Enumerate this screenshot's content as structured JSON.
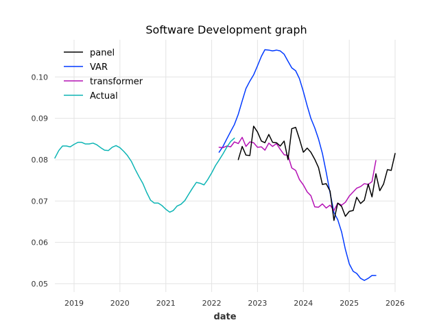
{
  "chart_data": {
    "type": "line",
    "title": "Software Development graph",
    "xlabel": "date",
    "ylabel": "",
    "x_axis": {
      "type": "date",
      "lim": [
        "2018-08-01",
        "2026-01-01"
      ],
      "ticks": [
        "2019",
        "2020",
        "2021",
        "2022",
        "2023",
        "2024",
        "2025",
        "2026"
      ]
    },
    "ylim": [
      0.048,
      0.109
    ],
    "y_ticks": [
      "0.05",
      "0.06",
      "0.07",
      "0.08",
      "0.09",
      "0.10"
    ],
    "y_tick_values": [
      0.05,
      0.06,
      0.07,
      0.08,
      0.09,
      0.1
    ],
    "grid": true,
    "legend": "top-left",
    "series": [
      {
        "name": "panel",
        "color": "#000000",
        "x": [
          "2022-08-01",
          "2022-09-01",
          "2022-10-01",
          "2022-11-01",
          "2022-12-01",
          "2023-01-01",
          "2023-02-01",
          "2023-03-01",
          "2023-04-01",
          "2023-05-01",
          "2023-06-01",
          "2023-07-01",
          "2023-08-01",
          "2023-09-01",
          "2023-10-01",
          "2023-11-01",
          "2023-12-01",
          "2024-01-01",
          "2024-02-01",
          "2024-03-01",
          "2024-04-01",
          "2024-05-01",
          "2024-06-01",
          "2024-07-01",
          "2024-08-01",
          "2024-09-01",
          "2024-10-01",
          "2024-11-01",
          "2024-12-01",
          "2025-01-01",
          "2025-02-01",
          "2025-03-01",
          "2025-04-01",
          "2025-05-01",
          "2025-06-01",
          "2025-07-01",
          "2025-08-01",
          "2025-09-01",
          "2025-10-01",
          "2025-11-01",
          "2025-12-01",
          "2026-01-01"
        ],
        "values": [
          0.08,
          0.0832,
          0.0811,
          0.081,
          0.0881,
          0.0867,
          0.0845,
          0.0841,
          0.0861,
          0.0842,
          0.0841,
          0.0833,
          0.0845,
          0.08,
          0.0875,
          0.0878,
          0.085,
          0.0818,
          0.0828,
          0.0818,
          0.0801,
          0.0781,
          0.074,
          0.0742,
          0.0724,
          0.0653,
          0.0695,
          0.0687,
          0.0663,
          0.0675,
          0.0677,
          0.0709,
          0.0694,
          0.0702,
          0.0741,
          0.071,
          0.0766,
          0.0725,
          0.0741,
          0.0776,
          0.0774,
          0.0815
        ]
      },
      {
        "name": "VAR",
        "color": "#0039ff",
        "x": [
          "2022-03-01",
          "2022-04-01",
          "2022-05-01",
          "2022-06-01",
          "2022-07-01",
          "2022-08-01",
          "2022-09-01",
          "2022-10-01",
          "2022-11-01",
          "2022-12-01",
          "2023-01-01",
          "2023-02-01",
          "2023-03-01",
          "2023-04-01",
          "2023-05-01",
          "2023-06-01",
          "2023-07-01",
          "2023-08-01",
          "2023-09-01",
          "2023-10-01",
          "2023-11-01",
          "2023-12-01",
          "2024-01-01",
          "2024-02-01",
          "2024-03-01",
          "2024-04-01",
          "2024-05-01",
          "2024-06-01",
          "2024-07-01",
          "2024-08-01",
          "2024-09-01",
          "2024-10-01",
          "2024-11-01",
          "2024-12-01",
          "2025-01-01",
          "2025-02-01",
          "2025-03-01",
          "2025-04-01",
          "2025-05-01",
          "2025-06-01",
          "2025-07-01",
          "2025-08-01"
        ],
        "values": [
          0.0818,
          0.0832,
          0.085,
          0.0868,
          0.0885,
          0.091,
          0.0942,
          0.0972,
          0.099,
          0.1005,
          0.1027,
          0.105,
          0.1066,
          0.1065,
          0.1063,
          0.1065,
          0.1063,
          0.1055,
          0.1038,
          0.1022,
          0.1015,
          0.0996,
          0.0965,
          0.093,
          0.09,
          0.0877,
          0.085,
          0.0815,
          0.077,
          0.072,
          0.0672,
          0.0655,
          0.0625,
          0.0583,
          0.0548,
          0.053,
          0.0525,
          0.0513,
          0.0508,
          0.0513,
          0.052,
          0.052
        ]
      },
      {
        "name": "transformer",
        "color": "#b410b4",
        "x": [
          "2022-03-01",
          "2022-04-01",
          "2022-05-01",
          "2022-06-01",
          "2022-07-01",
          "2022-08-01",
          "2022-09-01",
          "2022-10-01",
          "2022-11-01",
          "2022-12-01",
          "2023-01-01",
          "2023-02-01",
          "2023-03-01",
          "2023-04-01",
          "2023-05-01",
          "2023-06-01",
          "2023-07-01",
          "2023-08-01",
          "2023-09-01",
          "2023-10-01",
          "2023-11-01",
          "2023-12-01",
          "2024-01-01",
          "2024-02-01",
          "2024-03-01",
          "2024-04-01",
          "2024-05-01",
          "2024-06-01",
          "2024-07-01",
          "2024-08-01",
          "2024-09-01",
          "2024-10-01",
          "2024-11-01",
          "2024-12-01",
          "2025-01-01",
          "2025-02-01",
          "2025-03-01",
          "2025-04-01",
          "2025-05-01",
          "2025-06-01",
          "2025-07-01",
          "2025-08-01"
        ],
        "values": [
          0.083,
          0.0829,
          0.0833,
          0.0831,
          0.0843,
          0.0839,
          0.0854,
          0.0832,
          0.0843,
          0.0841,
          0.083,
          0.0831,
          0.0823,
          0.084,
          0.0832,
          0.0839,
          0.0825,
          0.0812,
          0.081,
          0.078,
          0.0774,
          0.0752,
          0.0739,
          0.0722,
          0.0713,
          0.0686,
          0.0685,
          0.0693,
          0.0683,
          0.069,
          0.0677,
          0.0695,
          0.069,
          0.0697,
          0.0712,
          0.0722,
          0.0731,
          0.0735,
          0.0742,
          0.074,
          0.0747,
          0.0798
        ]
      },
      {
        "name": "Actual",
        "color": "#0bb4b4",
        "x": [
          "2018-08-01",
          "2018-09-01",
          "2018-10-01",
          "2018-11-01",
          "2018-12-01",
          "2019-01-01",
          "2019-02-01",
          "2019-03-01",
          "2019-04-01",
          "2019-05-01",
          "2019-06-01",
          "2019-07-01",
          "2019-08-01",
          "2019-09-01",
          "2019-10-01",
          "2019-11-01",
          "2019-12-01",
          "2020-01-01",
          "2020-02-01",
          "2020-03-01",
          "2020-04-01",
          "2020-05-01",
          "2020-06-01",
          "2020-07-01",
          "2020-08-01",
          "2020-09-01",
          "2020-10-01",
          "2020-11-01",
          "2020-12-01",
          "2021-01-01",
          "2021-02-01",
          "2021-03-01",
          "2021-04-01",
          "2021-05-01",
          "2021-06-01",
          "2021-07-01",
          "2021-08-01",
          "2021-09-01",
          "2021-10-01",
          "2021-11-01",
          "2021-12-01",
          "2022-01-01",
          "2022-02-01",
          "2022-03-01",
          "2022-04-01",
          "2022-05-01",
          "2022-06-01",
          "2022-07-01"
        ],
        "values": [
          0.0804,
          0.0822,
          0.0833,
          0.0833,
          0.0831,
          0.0837,
          0.0842,
          0.0842,
          0.0838,
          0.0838,
          0.084,
          0.0836,
          0.0829,
          0.0823,
          0.0822,
          0.083,
          0.0834,
          0.0829,
          0.082,
          0.081,
          0.0796,
          0.0777,
          0.0759,
          0.0743,
          0.0721,
          0.0702,
          0.0695,
          0.0695,
          0.0689,
          0.068,
          0.0673,
          0.0677,
          0.0688,
          0.0692,
          0.0701,
          0.0716,
          0.0731,
          0.0745,
          0.0743,
          0.0739,
          0.0752,
          0.0768,
          0.0786,
          0.0799,
          0.0814,
          0.083,
          0.0844,
          0.0852
        ]
      }
    ]
  }
}
